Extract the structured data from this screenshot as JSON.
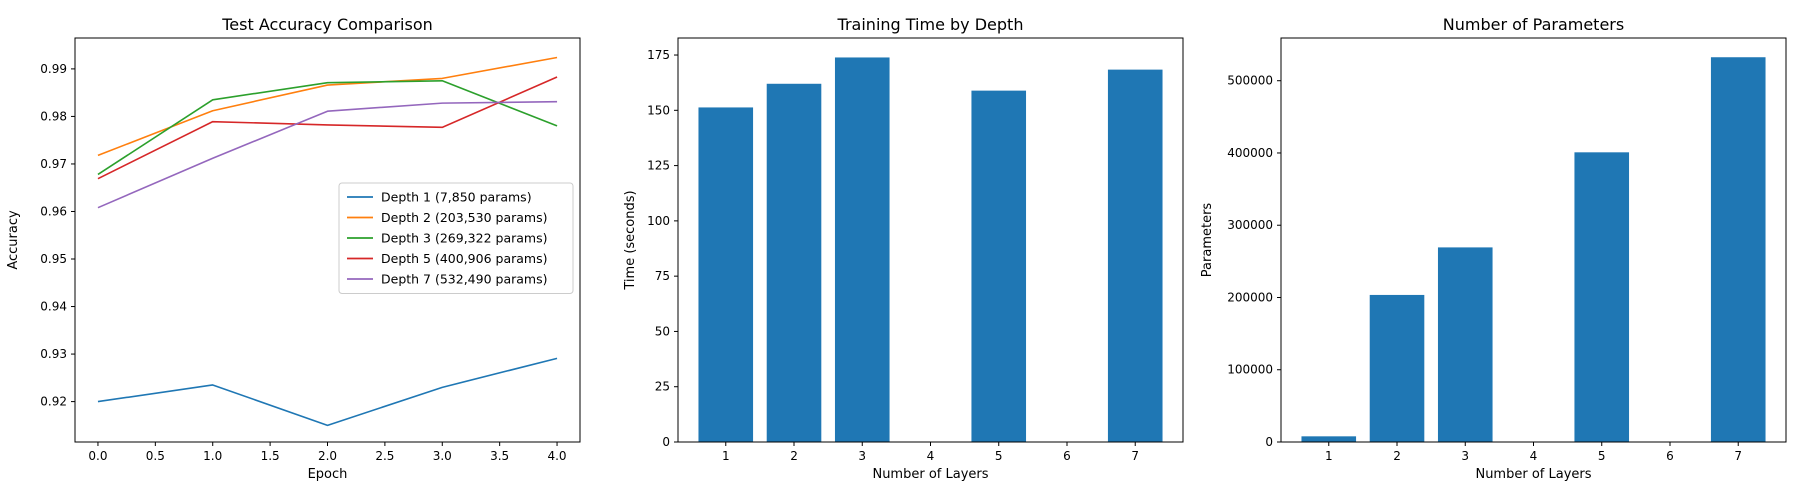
{
  "chart_data": [
    {
      "type": "line",
      "title": "Test Accuracy Comparison",
      "xlabel": "Epoch",
      "ylabel": "Accuracy",
      "xlim": [
        -0.2,
        4.2
      ],
      "ylim": [
        0.9115,
        0.9965
      ],
      "xticks": [
        0.0,
        0.5,
        1.0,
        1.5,
        2.0,
        2.5,
        3.0,
        3.5,
        4.0
      ],
      "xtick_labels": [
        "0.0",
        "0.5",
        "1.0",
        "1.5",
        "2.0",
        "2.5",
        "3.0",
        "3.5",
        "4.0"
      ],
      "yticks": [
        0.92,
        0.93,
        0.94,
        0.95,
        0.96,
        0.97,
        0.98,
        0.99
      ],
      "ytick_labels": [
        "0.92",
        "0.93",
        "0.94",
        "0.95",
        "0.96",
        "0.97",
        "0.98",
        "0.99"
      ],
      "legend_position": "center-right",
      "x": [
        0,
        1,
        2,
        3,
        4
      ],
      "series": [
        {
          "name": "Depth 1 (7,850 params)",
          "color": "#1f77b4",
          "values": [
            0.92,
            0.9235,
            0.915,
            0.923,
            0.9291
          ]
        },
        {
          "name": "Depth 2 (203,530 params)",
          "color": "#ff7f0e",
          "values": [
            0.9718,
            0.9812,
            0.9866,
            0.988,
            0.9924
          ]
        },
        {
          "name": "Depth 3 (269,322 params)",
          "color": "#2ca02c",
          "values": [
            0.9678,
            0.9835,
            0.9871,
            0.9875,
            0.978
          ]
        },
        {
          "name": "Depth 5 (400,906 params)",
          "color": "#d62728",
          "values": [
            0.9669,
            0.9789,
            0.9782,
            0.9777,
            0.9883
          ]
        },
        {
          "name": "Depth 7 (532,490 params)",
          "color": "#9467bd",
          "values": [
            0.9608,
            0.9712,
            0.9811,
            0.9828,
            0.9831
          ]
        }
      ]
    },
    {
      "type": "bar",
      "title": "Training Time by Depth",
      "xlabel": "Number of Layers",
      "ylabel": "Time (seconds)",
      "xlim": [
        0.3,
        7.7
      ],
      "ylim": [
        0,
        182.7
      ],
      "color": "#1f77b4",
      "xticks": [
        1,
        2,
        3,
        4,
        5,
        6,
        7
      ],
      "xtick_labels": [
        "1",
        "2",
        "3",
        "4",
        "5",
        "6",
        "7"
      ],
      "yticks": [
        0,
        25,
        50,
        75,
        100,
        125,
        150,
        175
      ],
      "ytick_labels": [
        "0",
        "25",
        "50",
        "75",
        "100",
        "125",
        "150",
        "175"
      ],
      "x": [
        1,
        2,
        3,
        5,
        7
      ],
      "values": [
        151.3,
        162.0,
        173.9,
        158.9,
        168.4
      ]
    },
    {
      "type": "bar",
      "title": "Number of Parameters",
      "xlabel": "Number of Layers",
      "ylabel": "Parameters",
      "xlim": [
        0.3,
        7.7
      ],
      "ylim": [
        0,
        559114
      ],
      "color": "#1f77b4",
      "xticks": [
        1,
        2,
        3,
        4,
        5,
        6,
        7
      ],
      "xtick_labels": [
        "1",
        "2",
        "3",
        "4",
        "5",
        "6",
        "7"
      ],
      "yticks": [
        0,
        100000,
        200000,
        300000,
        400000,
        500000
      ],
      "ytick_labels": [
        "0",
        "100000",
        "200000",
        "300000",
        "400000",
        "500000"
      ],
      "x": [
        1,
        2,
        3,
        5,
        7
      ],
      "values": [
        7850,
        203530,
        269322,
        400906,
        532490
      ]
    }
  ]
}
